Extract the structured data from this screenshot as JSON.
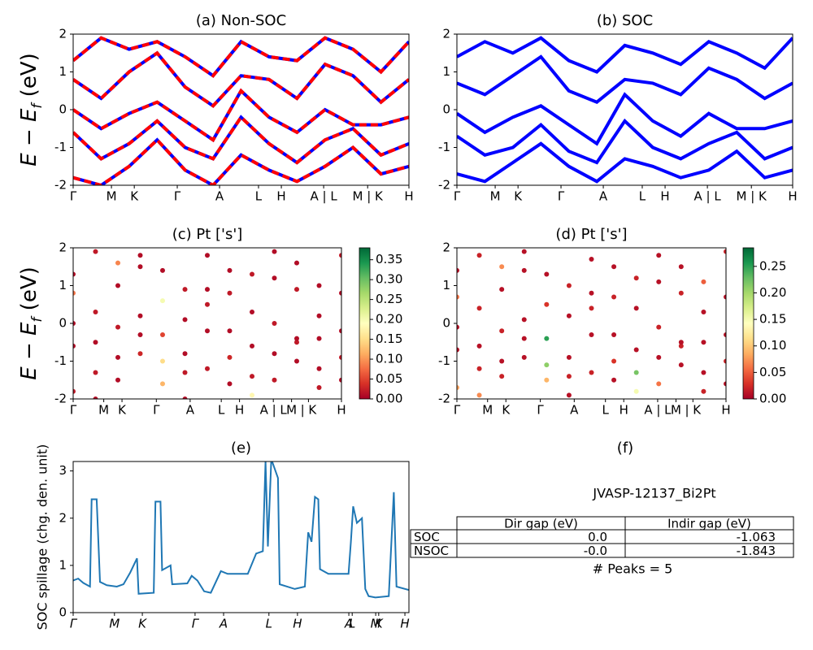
{
  "chart_data": [
    {
      "type": "line",
      "title": "(a) Non-SOC",
      "ylabel_parts": [
        "E − E",
        "f",
        " (eV)"
      ],
      "color": "#ff0000",
      "underlay_color": "#0000ff",
      "x": [
        0,
        0.0833,
        0.1667,
        0.25,
        0.3333,
        0.4167,
        0.5,
        0.5833,
        0.6667,
        0.75,
        0.8333,
        0.9167,
        1
      ],
      "xlim": [
        0,
        1
      ],
      "xticks": [
        {
          "value": 0,
          "label": "Γ"
        },
        {
          "value": 0.114,
          "label": "M"
        },
        {
          "value": 0.182,
          "label": "K"
        },
        {
          "value": 0.31,
          "label": "Γ"
        },
        {
          "value": 0.436,
          "label": "A"
        },
        {
          "value": 0.552,
          "label": "L"
        },
        {
          "value": 0.62,
          "label": "H"
        },
        {
          "value": 0.746,
          "label": "A | L"
        },
        {
          "value": 0.877,
          "label": "M | K"
        },
        {
          "value": 1,
          "label": "H"
        }
      ],
      "ylim": [
        -2,
        2
      ],
      "yticks": [
        -2,
        -1,
        0,
        1,
        2
      ],
      "series": [
        {
          "values": [
            -1.8,
            -2.0,
            -1.5,
            -0.8,
            -1.6,
            -2.0,
            -1.2,
            -1.6,
            -1.9,
            -1.5,
            -1.0,
            -1.7,
            -1.5
          ]
        },
        {
          "values": [
            -0.6,
            -1.3,
            -0.9,
            -0.3,
            -1.0,
            -1.3,
            -0.2,
            -0.9,
            -1.4,
            -0.8,
            -0.5,
            -1.2,
            -0.9
          ]
        },
        {
          "values": [
            0.0,
            -0.5,
            -0.1,
            0.2,
            -0.3,
            -0.8,
            0.5,
            -0.2,
            -0.6,
            0.0,
            -0.4,
            -0.4,
            -0.2
          ]
        },
        {
          "values": [
            0.8,
            0.3,
            1.0,
            1.5,
            0.6,
            0.1,
            0.9,
            0.8,
            0.3,
            1.2,
            0.9,
            0.2,
            0.8
          ]
        },
        {
          "values": [
            1.3,
            1.9,
            1.6,
            1.8,
            1.4,
            0.9,
            1.8,
            1.4,
            1.3,
            1.9,
            1.6,
            1.0,
            1.8
          ]
        }
      ]
    },
    {
      "type": "line",
      "title": "(b) SOC",
      "color": "#0000ff",
      "x": [
        0,
        0.0833,
        0.1667,
        0.25,
        0.3333,
        0.4167,
        0.5,
        0.5833,
        0.6667,
        0.75,
        0.8333,
        0.9167,
        1
      ],
      "xlim": [
        0,
        1
      ],
      "xticks": [
        {
          "value": 0,
          "label": "Γ"
        },
        {
          "value": 0.114,
          "label": "M"
        },
        {
          "value": 0.182,
          "label": "K"
        },
        {
          "value": 0.31,
          "label": "Γ"
        },
        {
          "value": 0.436,
          "label": "A"
        },
        {
          "value": 0.552,
          "label": "L"
        },
        {
          "value": 0.62,
          "label": "H"
        },
        {
          "value": 0.746,
          "label": "A | L"
        },
        {
          "value": 0.877,
          "label": "M | K"
        },
        {
          "value": 1,
          "label": "H"
        }
      ],
      "ylim": [
        -2,
        2
      ],
      "yticks": [
        -2,
        -1,
        0,
        1,
        2
      ],
      "series": [
        {
          "values": [
            -1.7,
            -1.9,
            -1.4,
            -0.9,
            -1.5,
            -1.9,
            -1.3,
            -1.5,
            -1.8,
            -1.6,
            -1.1,
            -1.8,
            -1.6
          ]
        },
        {
          "values": [
            -0.7,
            -1.2,
            -1.0,
            -0.4,
            -1.1,
            -1.4,
            -0.3,
            -1.0,
            -1.3,
            -0.9,
            -0.6,
            -1.3,
            -1.0
          ]
        },
        {
          "values": [
            -0.1,
            -0.6,
            -0.2,
            0.1,
            -0.4,
            -0.9,
            0.4,
            -0.3,
            -0.7,
            -0.1,
            -0.5,
            -0.5,
            -0.3
          ]
        },
        {
          "values": [
            0.7,
            0.4,
            0.9,
            1.4,
            0.5,
            0.2,
            0.8,
            0.7,
            0.4,
            1.1,
            0.8,
            0.3,
            0.7
          ]
        },
        {
          "values": [
            1.4,
            1.8,
            1.5,
            1.9,
            1.3,
            1.0,
            1.7,
            1.5,
            1.2,
            1.8,
            1.5,
            1.1,
            1.9
          ]
        }
      ]
    },
    {
      "type": "scatter",
      "title": "(c)  Pt ['s']",
      "ylabel_parts": [
        "E − E",
        "f",
        " (eV)"
      ],
      "x": [
        0,
        0.0833,
        0.1667,
        0.25,
        0.3333,
        0.4167,
        0.5,
        0.5833,
        0.6667,
        0.75,
        0.8333,
        0.9167,
        1
      ],
      "xlim": [
        0,
        1
      ],
      "xticks": [
        {
          "value": 0,
          "label": "Γ"
        },
        {
          "value": 0.114,
          "label": "M"
        },
        {
          "value": 0.182,
          "label": "K"
        },
        {
          "value": 0.31,
          "label": "Γ"
        },
        {
          "value": 0.436,
          "label": "A"
        },
        {
          "value": 0.552,
          "label": "L"
        },
        {
          "value": 0.62,
          "label": "H"
        },
        {
          "value": 0.746,
          "label": "A | L"
        },
        {
          "value": 0.814,
          "label": "M"
        },
        {
          "value": 0.877,
          "label": "| K"
        },
        {
          "value": 1,
          "label": "H"
        }
      ],
      "ylim": [
        -2,
        2
      ],
      "yticks": [
        -2,
        -1,
        0,
        1,
        2
      ],
      "clim": [
        0,
        0.38
      ],
      "cticks": [
        {
          "value": 0,
          "label": "0.00"
        },
        {
          "value": 0.05,
          "label": "0.05"
        },
        {
          "value": 0.1,
          "label": "0.10"
        },
        {
          "value": 0.15,
          "label": "0.15"
        },
        {
          "value": 0.2,
          "label": "0.20"
        },
        {
          "value": 0.25,
          "label": "0.25"
        },
        {
          "value": 0.3,
          "label": "0.30"
        },
        {
          "value": 0.35,
          "label": "0.35"
        }
      ],
      "series": [
        {
          "values": [
            -1.8,
            -2.0,
            -1.5,
            -0.8,
            -1.6,
            -2.0,
            -1.2,
            -1.6,
            -1.9,
            -1.5,
            -1.0,
            -1.7,
            -1.5
          ],
          "weights": [
            0.02,
            0.01,
            0.01,
            0.03,
            0.12,
            0.01,
            0.02,
            0.01,
            0.18,
            0.02,
            0.01,
            0.02,
            0.01
          ]
        },
        {
          "values": [
            -0.6,
            -1.3,
            -0.9,
            -0.3,
            -1.0,
            -1.3,
            -0.2,
            -0.9,
            -1.4,
            -0.8,
            -0.5,
            -1.2,
            -0.9
          ],
          "weights": [
            0.01,
            0.02,
            0.01,
            0.01,
            0.15,
            0.02,
            0.01,
            0.03,
            0.02,
            0.01,
            0.02,
            0.01,
            0.02
          ]
        },
        {
          "values": [
            0.0,
            -0.5,
            -0.1,
            0.2,
            -0.3,
            -0.8,
            0.5,
            -0.2,
            -0.6,
            0.0,
            -0.4,
            -0.4,
            -0.2
          ],
          "weights": [
            0.01,
            0.01,
            0.02,
            0.01,
            0.05,
            0.01,
            0.02,
            0.01,
            0.01,
            0.02,
            0.01,
            0.01,
            0.01
          ]
        },
        {
          "values": [
            0.8,
            0.3,
            1.0,
            1.5,
            0.6,
            0.1,
            0.9,
            0.8,
            0.3,
            1.2,
            0.9,
            0.2,
            0.8
          ],
          "weights": [
            0.08,
            0.02,
            0.01,
            0.01,
            0.2,
            0.01,
            0.01,
            0.02,
            0.01,
            0.01,
            0.02,
            0.01,
            0.01
          ]
        },
        {
          "values": [
            1.3,
            1.9,
            1.6,
            1.8,
            1.4,
            0.9,
            1.8,
            1.4,
            1.3,
            1.9,
            1.6,
            1.0,
            1.8
          ],
          "weights": [
            0.01,
            0.02,
            0.09,
            0.01,
            0.01,
            0.02,
            0.01,
            0.01,
            0.02,
            0.01,
            0.01,
            0.01,
            0.02
          ]
        }
      ]
    },
    {
      "type": "scatter",
      "title": "(d) Pt ['s']",
      "x": [
        0,
        0.0833,
        0.1667,
        0.25,
        0.3333,
        0.4167,
        0.5,
        0.5833,
        0.6667,
        0.75,
        0.8333,
        0.9167,
        1
      ],
      "xlim": [
        0,
        1
      ],
      "xticks": [
        {
          "value": 0,
          "label": "Γ"
        },
        {
          "value": 0.114,
          "label": "M"
        },
        {
          "value": 0.182,
          "label": "K"
        },
        {
          "value": 0.31,
          "label": "Γ"
        },
        {
          "value": 0.436,
          "label": "A"
        },
        {
          "value": 0.552,
          "label": "L"
        },
        {
          "value": 0.62,
          "label": "H"
        },
        {
          "value": 0.746,
          "label": "A | L"
        },
        {
          "value": 0.814,
          "label": "M"
        },
        {
          "value": 0.877,
          "label": "| K"
        },
        {
          "value": 1,
          "label": "H"
        }
      ],
      "ylim": [
        -2,
        2
      ],
      "yticks": [
        -2,
        -1,
        0,
        1,
        2
      ],
      "clim": [
        0,
        0.285
      ],
      "cticks": [
        {
          "value": 0,
          "label": "0.00"
        },
        {
          "value": 0.05,
          "label": "0.05"
        },
        {
          "value": 0.1,
          "label": "0.10"
        },
        {
          "value": 0.15,
          "label": "0.15"
        },
        {
          "value": 0.2,
          "label": "0.20"
        },
        {
          "value": 0.25,
          "label": "0.25"
        }
      ],
      "series": [
        {
          "values": [
            -1.7,
            -1.9,
            -1.4,
            -0.9,
            -1.5,
            -1.9,
            -1.3,
            -1.5,
            -1.8,
            -1.6,
            -1.1,
            -1.8,
            -1.6
          ],
          "weights": [
            0.08,
            0.07,
            0.02,
            0.01,
            0.09,
            0.01,
            0.02,
            0.01,
            0.15,
            0.06,
            0.01,
            0.02,
            0.01
          ]
        },
        {
          "values": [
            -0.7,
            -1.2,
            -1.0,
            -0.4,
            -1.1,
            -1.4,
            -0.3,
            -1.0,
            -1.3,
            -0.9,
            -0.6,
            -1.3,
            -1.0
          ],
          "weights": [
            0.01,
            0.02,
            0.01,
            0.01,
            0.21,
            0.02,
            0.01,
            0.03,
            0.22,
            0.01,
            0.02,
            0.01,
            0.02
          ]
        },
        {
          "values": [
            -0.1,
            -0.6,
            -0.2,
            0.1,
            -0.4,
            -0.9,
            0.4,
            -0.3,
            -0.7,
            -0.1,
            -0.5,
            -0.5,
            -0.3
          ],
          "weights": [
            0.01,
            0.01,
            0.02,
            0.01,
            0.25,
            0.01,
            0.02,
            0.01,
            0.01,
            0.02,
            0.01,
            0.01,
            0.01
          ]
        },
        {
          "values": [
            0.7,
            0.4,
            0.9,
            1.4,
            0.5,
            0.2,
            0.8,
            0.7,
            0.4,
            1.1,
            0.8,
            0.3,
            0.7
          ],
          "weights": [
            0.06,
            0.02,
            0.01,
            0.01,
            0.03,
            0.01,
            0.01,
            0.02,
            0.01,
            0.01,
            0.02,
            0.01,
            0.01
          ]
        },
        {
          "values": [
            1.4,
            1.8,
            1.5,
            1.9,
            1.3,
            1.0,
            1.7,
            1.5,
            1.2,
            1.8,
            1.5,
            1.1,
            1.9
          ],
          "weights": [
            0.01,
            0.02,
            0.07,
            0.01,
            0.01,
            0.02,
            0.01,
            0.01,
            0.02,
            0.01,
            0.01,
            0.05,
            0.02
          ]
        }
      ]
    },
    {
      "type": "spillage",
      "title": "(e)",
      "ylabel": "SOC spillage (chg. den. unit)",
      "color": "#1f77b4",
      "x": [
        0,
        0.015,
        0.03,
        0.05,
        0.055,
        0.07,
        0.08,
        0.1,
        0.13,
        0.15,
        0.17,
        0.19,
        0.195,
        0.24,
        0.245,
        0.26,
        0.265,
        0.29,
        0.295,
        0.34,
        0.353,
        0.37,
        0.39,
        0.41,
        0.44,
        0.46,
        0.52,
        0.545,
        0.565,
        0.573,
        0.58,
        0.59,
        0.61,
        0.615,
        0.66,
        0.69,
        0.7,
        0.71,
        0.72,
        0.73,
        0.735,
        0.76,
        0.82,
        0.827,
        0.834,
        0.845,
        0.86,
        0.87,
        0.88,
        0.9,
        0.94,
        0.955,
        0.963,
        1.0
      ],
      "values": [
        0.68,
        0.72,
        0.63,
        0.55,
        2.4,
        2.4,
        0.65,
        0.58,
        0.55,
        0.6,
        0.85,
        1.15,
        0.4,
        0.42,
        2.35,
        2.35,
        0.9,
        1.0,
        0.6,
        0.62,
        0.78,
        0.68,
        0.45,
        0.42,
        0.88,
        0.82,
        0.82,
        1.25,
        1.3,
        3.2,
        1.4,
        3.25,
        2.85,
        0.6,
        0.5,
        0.55,
        1.7,
        1.5,
        2.45,
        2.4,
        0.92,
        0.82,
        0.82,
        1.5,
        2.25,
        1.9,
        2.0,
        0.5,
        0.35,
        0.32,
        0.35,
        2.55,
        0.55,
        0.48
      ],
      "xlim": [
        0,
        1
      ],
      "xticks": [
        {
          "value": 0,
          "label": "Γ"
        },
        {
          "value": 0.123,
          "label": "M"
        },
        {
          "value": 0.206,
          "label": "K"
        },
        {
          "value": 0.363,
          "label": "Γ"
        },
        {
          "value": 0.448,
          "label": "A"
        },
        {
          "value": 0.583,
          "label": "L"
        },
        {
          "value": 0.668,
          "label": "H"
        },
        {
          "value": 0.821,
          "label": "A"
        },
        {
          "value": 0.831,
          "label": "L"
        },
        {
          "value": 0.901,
          "label": "M"
        },
        {
          "value": 0.91,
          "label": "K"
        },
        {
          "value": 0.988,
          "label": "H"
        }
      ],
      "ylim": [
        0,
        3.2
      ],
      "yticks": [
        0,
        1,
        2,
        3
      ]
    }
  ],
  "table": {
    "title": "(f)",
    "subtitle": "JVASP-12137_Bi2Pt",
    "header": [
      "Dir gap (eV)",
      "Indir gap (eV)"
    ],
    "rows": [
      [
        "SOC",
        "0.0",
        "-1.063"
      ],
      [
        "NSOC",
        "-0.0",
        "-1.843"
      ]
    ],
    "note": "# Peaks = 5"
  }
}
